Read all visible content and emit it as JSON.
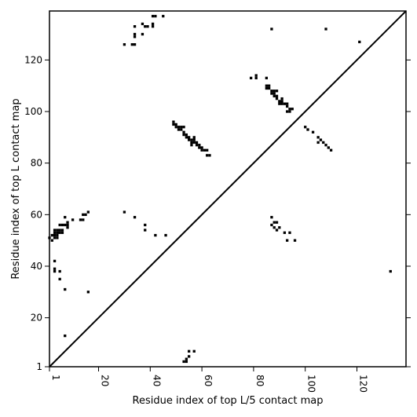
{
  "chart_data": {
    "type": "scatter",
    "xlabel": "Residue index of top L/5 contact map",
    "ylabel": "Residue index of top L contact map",
    "xlim": [
      1,
      139
    ],
    "ylim": [
      1,
      139
    ],
    "x_ticks": [
      1,
      20,
      40,
      60,
      80,
      100,
      120
    ],
    "y_ticks": [
      1,
      20,
      40,
      60,
      80,
      100,
      120
    ],
    "diagonal": true,
    "grid": false,
    "marker_color": "#000000",
    "series": [
      {
        "points_upper": [
          [
            30,
            126
          ],
          [
            33,
            126
          ],
          [
            34,
            126
          ],
          [
            34,
            129
          ],
          [
            34,
            130
          ],
          [
            34,
            133
          ],
          [
            37,
            130
          ],
          [
            37,
            134
          ],
          [
            38,
            133
          ],
          [
            39,
            133
          ],
          [
            41,
            133
          ],
          [
            41,
            134
          ],
          [
            41,
            137
          ],
          [
            42,
            137
          ],
          [
            45,
            137
          ],
          [
            87,
            132
          ],
          [
            108,
            132
          ],
          [
            121,
            127
          ],
          [
            79,
            113
          ],
          [
            81,
            113
          ],
          [
            81,
            114
          ],
          [
            85,
            113
          ],
          [
            85,
            110
          ],
          [
            86,
            109
          ],
          [
            85,
            109
          ],
          [
            86,
            110
          ],
          [
            87,
            108
          ],
          [
            87,
            107
          ],
          [
            88,
            108
          ],
          [
            89,
            108
          ],
          [
            88,
            107
          ],
          [
            88,
            106
          ],
          [
            89,
            106
          ],
          [
            89,
            105
          ],
          [
            90,
            104
          ],
          [
            90,
            103
          ],
          [
            91,
            104
          ],
          [
            91,
            105
          ],
          [
            91,
            103
          ],
          [
            92,
            103
          ],
          [
            93,
            103
          ],
          [
            93,
            102
          ],
          [
            93,
            100
          ],
          [
            94,
            101
          ],
          [
            94,
            100
          ],
          [
            95,
            101
          ],
          [
            49,
            96
          ],
          [
            49,
            95
          ],
          [
            50,
            95
          ],
          [
            50,
            94
          ],
          [
            51,
            94
          ],
          [
            51,
            93
          ],
          [
            52,
            94
          ],
          [
            53,
            94
          ],
          [
            52,
            93
          ],
          [
            53,
            92
          ],
          [
            53,
            91
          ],
          [
            54,
            91
          ],
          [
            54,
            90
          ],
          [
            55,
            90
          ],
          [
            55,
            89
          ],
          [
            56,
            89
          ],
          [
            56,
            88
          ],
          [
            57,
            90
          ],
          [
            57,
            89
          ],
          [
            57,
            88
          ],
          [
            56,
            87
          ],
          [
            58,
            87
          ],
          [
            58,
            88
          ],
          [
            59,
            87
          ],
          [
            59,
            86
          ],
          [
            60,
            86
          ],
          [
            60,
            85
          ],
          [
            61,
            85
          ],
          [
            62,
            85
          ],
          [
            62,
            83
          ],
          [
            63,
            83
          ],
          [
            100,
            94
          ],
          [
            101,
            93
          ],
          [
            103,
            92
          ],
          [
            105,
            90
          ],
          [
            106,
            89
          ],
          [
            107,
            88
          ],
          [
            108,
            87
          ],
          [
            109,
            86
          ],
          [
            110,
            85
          ],
          [
            105,
            88
          ]
        ]
      },
      {
        "points_lower": [
          [
            1,
            51
          ],
          [
            2,
            50
          ],
          [
            2,
            52
          ],
          [
            3,
            51
          ],
          [
            3,
            52
          ],
          [
            3,
            53
          ],
          [
            3,
            54
          ],
          [
            4,
            51
          ],
          [
            4,
            52
          ],
          [
            4,
            53
          ],
          [
            4,
            54
          ],
          [
            5,
            53
          ],
          [
            5,
            54
          ],
          [
            5,
            56
          ],
          [
            6,
            53
          ],
          [
            6,
            54
          ],
          [
            6,
            56
          ],
          [
            7,
            56
          ],
          [
            7,
            59
          ],
          [
            8,
            55
          ],
          [
            8,
            56
          ],
          [
            8,
            57
          ],
          [
            10,
            58
          ],
          [
            13,
            58
          ],
          [
            14,
            58
          ],
          [
            14,
            60
          ],
          [
            15,
            60
          ],
          [
            16,
            61
          ],
          [
            3,
            42
          ],
          [
            3,
            39
          ],
          [
            3,
            38
          ],
          [
            5,
            38
          ],
          [
            5,
            35
          ],
          [
            7,
            31
          ],
          [
            16,
            30
          ],
          [
            7,
            13
          ],
          [
            30,
            61
          ],
          [
            34,
            59
          ],
          [
            38,
            56
          ],
          [
            38,
            54
          ],
          [
            42,
            52
          ],
          [
            46,
            52
          ],
          [
            87,
            59
          ],
          [
            87,
            56
          ],
          [
            88,
            57
          ],
          [
            89,
            57
          ],
          [
            88,
            55
          ],
          [
            89,
            54
          ],
          [
            90,
            55
          ],
          [
            92,
            53
          ],
          [
            93,
            50
          ],
          [
            94,
            53
          ],
          [
            96,
            50
          ],
          [
            133,
            38
          ],
          [
            53,
            3
          ],
          [
            54,
            3
          ],
          [
            54,
            4
          ],
          [
            55,
            5
          ],
          [
            55,
            7
          ],
          [
            57,
            7
          ]
        ]
      }
    ]
  }
}
